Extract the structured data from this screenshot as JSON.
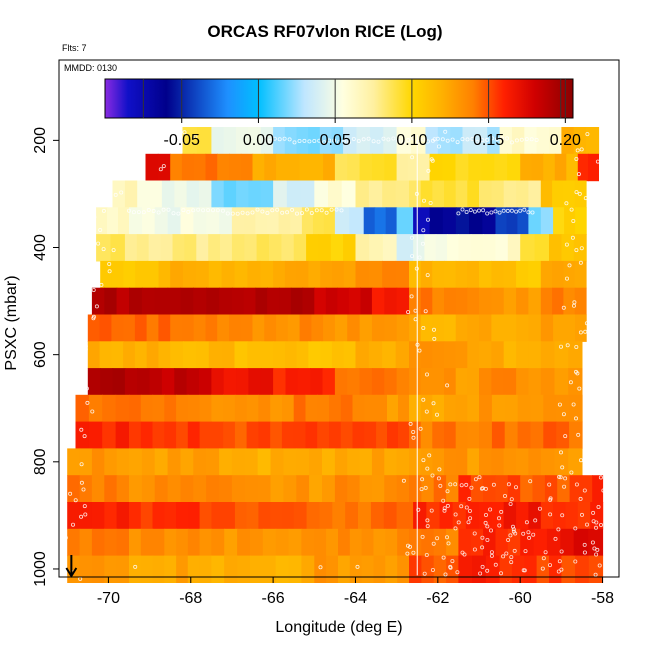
{
  "chart_data": {
    "type": "heatmap",
    "title": "ORCAS RF07vlon RICE (Log)",
    "subtitle_flts": "Flts: 7",
    "subtitle_date": "MMDD: 0130",
    "xlabel": "Longitude (deg E)",
    "ylabel": "PSXC (mbar)",
    "xlim": [
      -71.2,
      -57.6
    ],
    "ylim": [
      1015,
      50
    ],
    "x_ticks": [
      -70,
      -68,
      -66,
      -64,
      -62,
      -60,
      -58
    ],
    "x_tick_labels": [
      "-70",
      "-68",
      "-66",
      "-64",
      "-62",
      "-60",
      "-58"
    ],
    "y_ticks": [
      200,
      400,
      600,
      800,
      1000
    ],
    "y_tick_labels": [
      "200",
      "400",
      "600",
      "800",
      "1000"
    ],
    "colorbar": {
      "range": [
        -0.1,
        0.205
      ],
      "ticks": [
        -0.05,
        0.0,
        0.05,
        0.1,
        0.15,
        0.2
      ],
      "tick_labels": [
        "-0.05",
        "0.00",
        "0.05",
        "0.10",
        "0.15",
        "0.20"
      ],
      "stops": [
        {
          "v": -0.1,
          "c": "#8a2be2"
        },
        {
          "v": -0.085,
          "c": "#1010c8"
        },
        {
          "v": -0.06,
          "c": "#00008b"
        },
        {
          "v": -0.02,
          "c": "#1e90ff"
        },
        {
          "v": 0.0,
          "c": "#00bfff"
        },
        {
          "v": 0.03,
          "c": "#bfe6ff"
        },
        {
          "v": 0.055,
          "c": "#ffffe0"
        },
        {
          "v": 0.075,
          "c": "#fff0a0"
        },
        {
          "v": 0.1,
          "c": "#ffd700"
        },
        {
          "v": 0.12,
          "c": "#ffb000"
        },
        {
          "v": 0.14,
          "c": "#ff8000"
        },
        {
          "v": 0.16,
          "c": "#ff2000"
        },
        {
          "v": 0.18,
          "c": "#d00000"
        },
        {
          "v": 0.205,
          "c": "#8b0000"
        }
      ]
    },
    "marker_longitude": -70.9,
    "vertical_line_longitude": -62.5,
    "bins": [
      {
        "p": 200,
        "x0": -68.2,
        "x1": -58.1,
        "segs": [
          [
            -68.2,
            -67.5,
            0.09
          ],
          [
            -67.5,
            -66,
            0.05
          ],
          [
            -66,
            -64.3,
            0.02
          ],
          [
            -64.3,
            -63,
            0.04
          ],
          [
            -63,
            -62.3,
            0.06
          ],
          [
            -62.3,
            -60.5,
            0.03
          ],
          [
            -60.5,
            -59,
            0.06
          ],
          [
            -59,
            -58.1,
            0.12
          ]
        ]
      },
      {
        "p": 250,
        "x0": -69.1,
        "x1": -58.1,
        "segs": [
          [
            -69.1,
            -68.5,
            0.18
          ],
          [
            -68.5,
            -66.5,
            0.14
          ],
          [
            -66.5,
            -64.5,
            0.12
          ],
          [
            -64.5,
            -63,
            0.09
          ],
          [
            -63,
            -62.2,
            0.07
          ],
          [
            -62.2,
            -60,
            0.1
          ],
          [
            -60,
            -58.6,
            0.12
          ],
          [
            -58.6,
            -58.1,
            0.16
          ]
        ]
      },
      {
        "p": 300,
        "x0": -69.9,
        "x1": -58.4,
        "segs": [
          [
            -69.9,
            -69.3,
            0.07
          ],
          [
            -69.3,
            -67.5,
            0.05
          ],
          [
            -67.5,
            -66,
            0.02
          ],
          [
            -66,
            -65,
            0.04
          ],
          [
            -65,
            -64,
            0.06
          ],
          [
            -64,
            -62.7,
            0.08
          ],
          [
            -62.7,
            -61,
            0.09
          ],
          [
            -61,
            -59.5,
            0.08
          ],
          [
            -59.5,
            -58.4,
            0.11
          ]
        ]
      },
      {
        "p": 350,
        "x0": -70.3,
        "x1": -58.4,
        "segs": [
          [
            -70.3,
            -69.5,
            0.06
          ],
          [
            -69.5,
            -67,
            0.05
          ],
          [
            -67,
            -65.3,
            0.07
          ],
          [
            -65.3,
            -64.5,
            0.09
          ],
          [
            -64.5,
            -63.8,
            0.03
          ],
          [
            -63.8,
            -63,
            -0.03
          ],
          [
            -63,
            -62.6,
            0.02
          ],
          [
            -62.6,
            -62.2,
            -0.08
          ],
          [
            -62.2,
            -60.6,
            -0.06
          ],
          [
            -60.6,
            -59.8,
            -0.04
          ],
          [
            -59.8,
            -59.2,
            0.02
          ],
          [
            -59.2,
            -58.4,
            0.1
          ]
        ]
      },
      {
        "p": 400,
        "x0": -70.3,
        "x1": -58.4,
        "segs": [
          [
            -70.3,
            -69.6,
            0.09
          ],
          [
            -69.6,
            -67,
            0.08
          ],
          [
            -67,
            -65.2,
            0.085
          ],
          [
            -65.2,
            -64,
            0.1
          ],
          [
            -64,
            -63,
            0.07
          ],
          [
            -63,
            -62.6,
            0.04
          ],
          [
            -62.6,
            -61.5,
            0.05
          ],
          [
            -61.5,
            -60,
            0.06
          ],
          [
            -60,
            -59.3,
            0.09
          ],
          [
            -59.3,
            -58.4,
            0.11
          ]
        ]
      },
      {
        "p": 450,
        "x0": -70.2,
        "x1": -58.4,
        "segs": [
          [
            -70.2,
            -68.5,
            0.11
          ],
          [
            -68.5,
            -66,
            0.12
          ],
          [
            -66,
            -64,
            0.125
          ],
          [
            -64,
            -62.7,
            0.14
          ],
          [
            -62.7,
            -61,
            0.12
          ],
          [
            -61,
            -59.5,
            0.11
          ],
          [
            -59.5,
            -58.4,
            0.12
          ]
        ]
      },
      {
        "p": 500,
        "x0": -70.4,
        "x1": -58.4,
        "segs": [
          [
            -70.4,
            -69.5,
            0.19
          ],
          [
            -69.5,
            -67,
            0.195
          ],
          [
            -67,
            -65,
            0.19
          ],
          [
            -65,
            -63.6,
            0.18
          ],
          [
            -63.6,
            -62.7,
            0.165
          ],
          [
            -62.7,
            -61,
            0.14
          ],
          [
            -61,
            -59.5,
            0.13
          ],
          [
            -59.5,
            -58.4,
            0.14
          ]
        ]
      },
      {
        "p": 550,
        "x0": -70.5,
        "x1": -58.4,
        "segs": [
          [
            -70.5,
            -68.5,
            0.145
          ],
          [
            -68.5,
            -66.5,
            0.14
          ],
          [
            -66.5,
            -64.5,
            0.135
          ],
          [
            -64.5,
            -62.7,
            0.13
          ],
          [
            -62.7,
            -61,
            0.12
          ],
          [
            -61,
            -59.2,
            0.125
          ],
          [
            -59.2,
            -58.4,
            0.13
          ]
        ]
      },
      {
        "p": 600,
        "x0": -70.5,
        "x1": -58.5,
        "segs": [
          [
            -70.5,
            -68.5,
            0.12
          ],
          [
            -68.5,
            -66,
            0.115
          ],
          [
            -66,
            -64,
            0.11
          ],
          [
            -64,
            -62.7,
            0.12
          ],
          [
            -62.7,
            -61,
            0.13
          ],
          [
            -61,
            -59.5,
            0.12
          ],
          [
            -59.5,
            -58.5,
            0.125
          ]
        ]
      },
      {
        "p": 650,
        "x0": -70.5,
        "x1": -58.5,
        "segs": [
          [
            -70.5,
            -69,
            0.19
          ],
          [
            -69,
            -67.5,
            0.185
          ],
          [
            -67.5,
            -66,
            0.17
          ],
          [
            -66,
            -64.5,
            0.16
          ],
          [
            -64.5,
            -62.7,
            0.14
          ],
          [
            -62.7,
            -61,
            0.13
          ],
          [
            -61,
            -59.5,
            0.135
          ],
          [
            -59.5,
            -58.5,
            0.13
          ]
        ]
      },
      {
        "p": 700,
        "x0": -70.8,
        "x1": -58.5,
        "segs": [
          [
            -70.8,
            -69.5,
            0.145
          ],
          [
            -69.5,
            -67.5,
            0.14
          ],
          [
            -67.5,
            -65.5,
            0.135
          ],
          [
            -65.5,
            -63.5,
            0.14
          ],
          [
            -63.5,
            -62.7,
            0.13
          ],
          [
            -62.7,
            -61,
            0.125
          ],
          [
            -61,
            -58.5,
            0.13
          ]
        ]
      },
      {
        "p": 750,
        "x0": -70.8,
        "x1": -58.5,
        "segs": [
          [
            -70.8,
            -69.5,
            0.16
          ],
          [
            -69.5,
            -67.5,
            0.155
          ],
          [
            -67.5,
            -65.5,
            0.15
          ],
          [
            -65.5,
            -63.5,
            0.155
          ],
          [
            -63.5,
            -62.7,
            0.15
          ],
          [
            -62.7,
            -61,
            0.14
          ],
          [
            -61,
            -58.5,
            0.145
          ]
        ]
      },
      {
        "p": 800,
        "x0": -71.0,
        "x1": -58.5,
        "segs": [
          [
            -71,
            -69.5,
            0.13
          ],
          [
            -69.5,
            -67,
            0.125
          ],
          [
            -67,
            -64.5,
            0.12
          ],
          [
            -64.5,
            -62.7,
            0.125
          ],
          [
            -62.7,
            -61,
            0.13
          ],
          [
            -61,
            -59.5,
            0.135
          ],
          [
            -59.5,
            -58.5,
            0.13
          ]
        ]
      },
      {
        "p": 850,
        "x0": -71.0,
        "x1": -58.0,
        "segs": [
          [
            -71,
            -69.5,
            0.14
          ],
          [
            -69.5,
            -67,
            0.135
          ],
          [
            -67,
            -64.5,
            0.13
          ],
          [
            -64.5,
            -62.7,
            0.135
          ],
          [
            -62.7,
            -61.5,
            0.14
          ],
          [
            -61.5,
            -60,
            0.155
          ],
          [
            -60,
            -58.5,
            0.15
          ],
          [
            -58.5,
            -58,
            0.16
          ]
        ]
      },
      {
        "p": 900,
        "x0": -71.0,
        "x1": -58.0,
        "segs": [
          [
            -71,
            -69.5,
            0.16
          ],
          [
            -69.5,
            -67.5,
            0.155
          ],
          [
            -67.5,
            -65.5,
            0.15
          ],
          [
            -65.5,
            -63,
            0.145
          ],
          [
            -63,
            -62.6,
            0.14
          ],
          [
            -62.6,
            -61,
            0.16
          ],
          [
            -61,
            -59.5,
            0.165
          ],
          [
            -59.5,
            -58,
            0.16
          ]
        ]
      },
      {
        "p": 950,
        "x0": -71.0,
        "x1": -58.0,
        "segs": [
          [
            -71,
            -69.5,
            0.14
          ],
          [
            -69.5,
            -67.5,
            0.135
          ],
          [
            -67.5,
            -65,
            0.13
          ],
          [
            -65,
            -62.7,
            0.135
          ],
          [
            -62.7,
            -61.5,
            0.14
          ],
          [
            -61.5,
            -60,
            0.16
          ],
          [
            -60,
            -58.7,
            0.165
          ],
          [
            -58.7,
            -58,
            0.18
          ]
        ]
      },
      {
        "p": 1000,
        "x0": -71.0,
        "x1": -58.0,
        "segs": [
          [
            -71,
            -69.5,
            0.13
          ],
          [
            -69.5,
            -67.5,
            0.125
          ],
          [
            -67.5,
            -65,
            0.12
          ],
          [
            -65,
            -62.7,
            0.13
          ],
          [
            -62.7,
            -61.5,
            0.15
          ],
          [
            -61.5,
            -60.5,
            0.16
          ],
          [
            -60.5,
            -59,
            0.155
          ],
          [
            -59,
            -58,
            0.15
          ]
        ]
      }
    ]
  }
}
